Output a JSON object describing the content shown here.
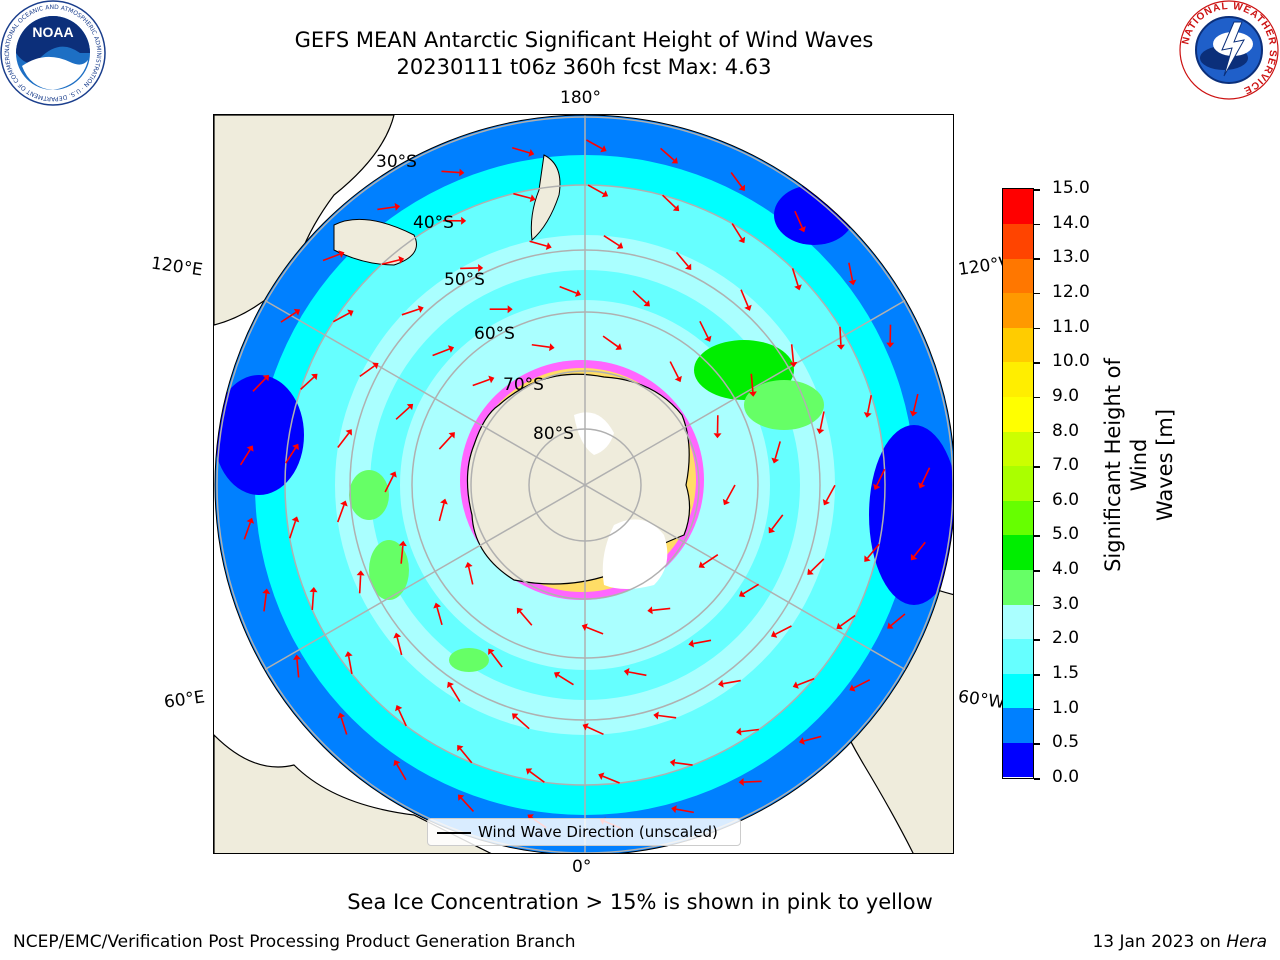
{
  "title_line1": "GEFS MEAN Antarctic Significant Height of Wind Waves",
  "title_line2": "20230111 t06z 360h fcst   Max: 4.63",
  "logos": {
    "left": {
      "name": "NOAA",
      "text": "NOAA",
      "ring_text": "NATIONAL OCEANIC AND ATMOSPHERIC ADMINISTRATION · U.S. DEPARTMENT OF COMMERCE"
    },
    "right": {
      "name": "National Weather Service",
      "ring_text": "NATIONAL WEATHER SERVICE"
    }
  },
  "map": {
    "projection": "south-polar-stereographic",
    "lon_labels": {
      "top": "180°",
      "bottom": "0°",
      "upper_left": "120°E",
      "upper_right": "120°W",
      "lower_left": "60°E",
      "lower_right": "60°W"
    },
    "lat_labels": [
      "30°S",
      "40°S",
      "50°S",
      "60°S",
      "70°S",
      "80°S"
    ],
    "arrow_color": "#ff0000",
    "land_color": "#efecdc",
    "legend_label": "Wind Wave Direction (unscaled)"
  },
  "colorbar": {
    "label": "Significant Height of Wind Waves [m]",
    "label_line1": "Significant Height of Wind",
    "label_line2": "Waves [m]",
    "ticks": [
      "0.0",
      "0.5",
      "1.0",
      "1.5",
      "2.0",
      "3.0",
      "4.0",
      "5.0",
      "6.0",
      "7.0",
      "8.0",
      "9.0",
      "10.0",
      "11.0",
      "12.0",
      "13.0",
      "14.0",
      "15.0"
    ],
    "colors": [
      "#0000ff",
      "#0080ff",
      "#00ffff",
      "#66ffff",
      "#aaffff",
      "#66ff66",
      "#00ee00",
      "#66ff00",
      "#aaff00",
      "#ccff00",
      "#ffff00",
      "#ffee00",
      "#ffcc00",
      "#ff9900",
      "#ff7700",
      "#ff4400",
      "#ff0000"
    ]
  },
  "bottom_note": "Sea Ice Concentration > 15% is shown in pink to yellow",
  "footer_left": "NCEP/EMC/Verification Post Processing Product Generation Branch",
  "footer_date": "13 Jan 2023 on",
  "footer_machine": "Hera"
}
